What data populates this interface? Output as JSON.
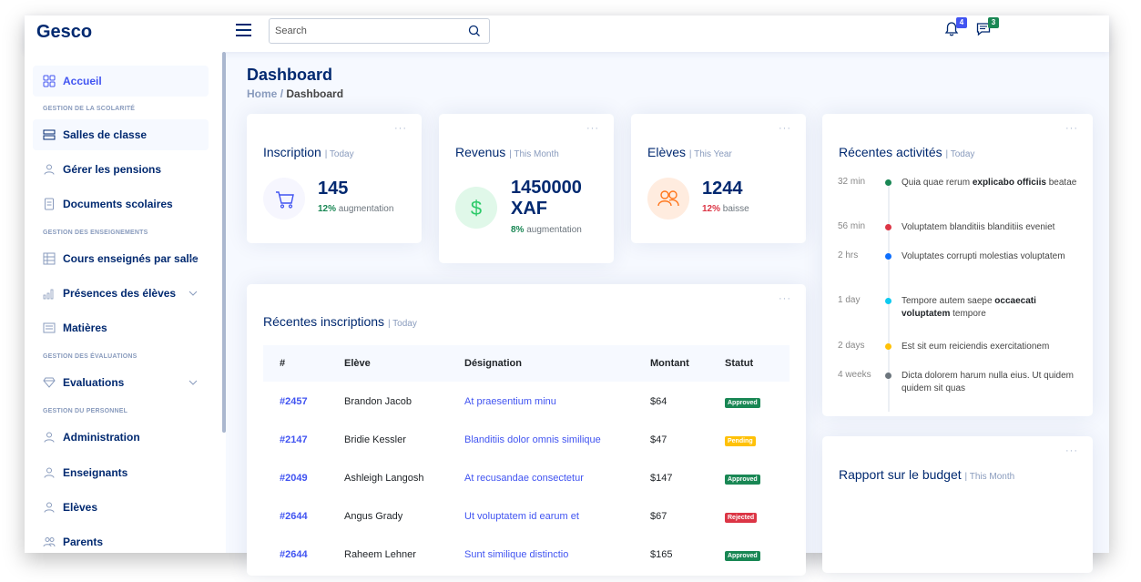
{
  "app": {
    "name": "Gesco"
  },
  "search": {
    "placeholder": "Search"
  },
  "notifications": {
    "bell_count": "4",
    "messages_count": "3"
  },
  "sidebar": {
    "items": [
      {
        "label": "Accueil",
        "icon": "grid-icon"
      },
      {
        "heading": "GESTION DE LA SCOLARITÉ"
      },
      {
        "label": "Salles de classe",
        "icon": "classroom-icon"
      },
      {
        "label": "Gérer les pensions",
        "icon": "person-icon"
      },
      {
        "label": "Documents scolaires",
        "icon": "document-icon"
      },
      {
        "heading": "GESTION DES ENSEIGNEMENTS"
      },
      {
        "label": "Cours enseignés par salle",
        "icon": "table-icon"
      },
      {
        "label": "Présences des élèves",
        "icon": "bar-chart-icon"
      },
      {
        "label": "Matières",
        "icon": "list-icon"
      },
      {
        "heading": "GESTION DES ÉVALUATIONS"
      },
      {
        "label": "Evaluations",
        "icon": "gem-icon"
      },
      {
        "heading": "GESTION DU PERSONNEL"
      },
      {
        "label": "Administration",
        "icon": "person-icon"
      },
      {
        "label": "Enseignants",
        "icon": "person-icon"
      },
      {
        "label": "Elèves",
        "icon": "person-icon"
      },
      {
        "label": "Parents",
        "icon": "people-icon"
      }
    ]
  },
  "page": {
    "title": "Dashboard",
    "breadcrumb_home": "Home",
    "breadcrumb_sep": "/",
    "breadcrumb_current": "Dashboard"
  },
  "cards": {
    "inscription": {
      "title": "Inscription",
      "period": "| Today",
      "value": "145",
      "change_pct": "12%",
      "change_label": "augmentation"
    },
    "revenus": {
      "title": "Revenus",
      "period": "| This Month",
      "value_line1": "1450000",
      "value_line2": "XAF",
      "change_pct": "8%",
      "change_label": "augmentation"
    },
    "eleves": {
      "title": "Elèves",
      "period": "| This Year",
      "value": "1244",
      "change_pct": "12%",
      "change_label": "baisse"
    },
    "dots": "···"
  },
  "recent_inscriptions": {
    "title": "Récentes inscriptions",
    "period": "| Today",
    "headers": [
      "#",
      "Elève",
      "Désignation",
      "Montant",
      "Statut"
    ],
    "rows": [
      {
        "id": "#2457",
        "eleve": "Brandon Jacob",
        "designation": "At praesentium minu",
        "montant": "$64",
        "statut": "Approved",
        "color": "#198754"
      },
      {
        "id": "#2147",
        "eleve": "Bridie Kessler",
        "designation": "Blanditiis dolor omnis similique",
        "montant": "$47",
        "statut": "Pending",
        "color": "#ffc107"
      },
      {
        "id": "#2049",
        "eleve": "Ashleigh Langosh",
        "designation": "At recusandae consectetur",
        "montant": "$147",
        "statut": "Approved",
        "color": "#198754"
      },
      {
        "id": "#2644",
        "eleve": "Angus Grady",
        "designation": "Ut voluptatem id earum et",
        "montant": "$67",
        "statut": "Rejected",
        "color": "#dc3545"
      },
      {
        "id": "#2644",
        "eleve": "Raheem Lehner",
        "designation": "Sunt similique distinctio",
        "montant": "$165",
        "statut": "Approved",
        "color": "#198754"
      }
    ]
  },
  "activities": {
    "title": "Récentes activités",
    "period": "| Today",
    "items": [
      {
        "time": "32 min",
        "color": "#198754",
        "pre": "Quia quae rerum ",
        "bold": "explicabo officiis",
        "post": " beatae"
      },
      {
        "time": "56 min",
        "color": "#dc3545",
        "pre": "Voluptatem blanditiis blanditiis eveniet",
        "bold": "",
        "post": ""
      },
      {
        "time": "2 hrs",
        "color": "#0d6efd",
        "pre": "Voluptates corrupti molestias voluptatem",
        "bold": "",
        "post": ""
      },
      {
        "time": "1 day",
        "color": "#0dcaf0",
        "pre": "Tempore autem saepe ",
        "bold": "occaecati voluptatem",
        "post": " tempore"
      },
      {
        "time": "2 days",
        "color": "#ffc107",
        "pre": "Est sit eum reiciendis exercitationem",
        "bold": "",
        "post": ""
      },
      {
        "time": "4 weeks",
        "color": "#6c757d",
        "pre": "Dicta dolorem harum nulla eius. Ut quidem quidem sit quas",
        "bold": "",
        "post": ""
      }
    ]
  },
  "budget": {
    "title": "Rapport sur le budget",
    "period": "| This Month"
  },
  "colors": {
    "brand": "#012970",
    "accent": "#4154f1",
    "muted": "#899bbd",
    "success": "#2eca6a",
    "danger": "#ff771d"
  }
}
